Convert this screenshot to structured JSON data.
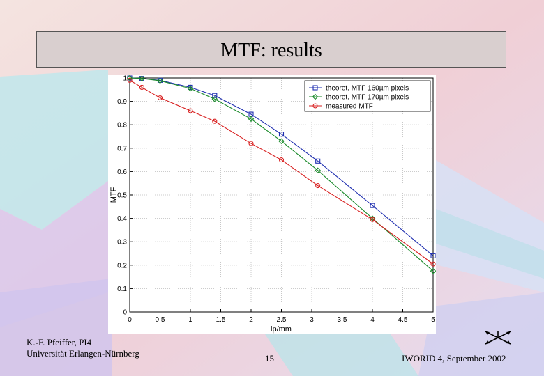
{
  "slide": {
    "title": "MTF: results",
    "author": "K.-F. Pfeiffer, PI4",
    "institution": "Universität Erlangen-Nürnberg",
    "page_number": "15",
    "conference": "IWORID 4, September 2002"
  },
  "chart_data": {
    "type": "line",
    "title": "",
    "xlabel": "lp/mm",
    "ylabel": "MTF",
    "xlim": [
      0,
      5
    ],
    "ylim": [
      0,
      1
    ],
    "xticks": [
      0,
      0.5,
      1,
      1.5,
      2,
      2.5,
      3,
      3.5,
      4,
      4.5,
      5
    ],
    "xtick_labels": [
      "0",
      "0.5",
      "1",
      "1.5",
      "2",
      "2.5",
      "3",
      "3.5",
      "4",
      "4.5",
      "5"
    ],
    "yticks": [
      0,
      0.1,
      0.2,
      0.3,
      0.4,
      0.5,
      0.6,
      0.7,
      0.8,
      0.9,
      1
    ],
    "ytick_labels": [
      "0",
      "0.1",
      "0.2",
      "0.3",
      "0.4",
      "0.5",
      "0.6",
      "0.7",
      "0.8",
      "0.9",
      "1"
    ],
    "grid": true,
    "legend_position": "top-right",
    "series": [
      {
        "name": "theoret. MTF 160µm pixels",
        "color": "#1f2fb0",
        "marker": "square",
        "x": [
          0,
          0.2,
          0.5,
          1,
          1.4,
          2,
          2.5,
          3.1,
          4,
          5
        ],
        "y": [
          1.0,
          0.998,
          0.99,
          0.96,
          0.925,
          0.845,
          0.76,
          0.645,
          0.455,
          0.24
        ]
      },
      {
        "name": "theoret. MTF 170µm pixels",
        "color": "#1a8a2a",
        "marker": "diamond",
        "x": [
          0,
          0.2,
          0.5,
          1,
          1.4,
          2,
          2.5,
          3.1,
          4,
          5
        ],
        "y": [
          1.0,
          0.998,
          0.988,
          0.955,
          0.91,
          0.825,
          0.73,
          0.605,
          0.4,
          0.175
        ]
      },
      {
        "name": "measured MTF",
        "color": "#d82020",
        "marker": "circle",
        "x": [
          0,
          0.2,
          0.5,
          1,
          1.4,
          2,
          2.5,
          3.1,
          4,
          5
        ],
        "y": [
          0.99,
          0.96,
          0.915,
          0.86,
          0.815,
          0.72,
          0.65,
          0.54,
          0.395,
          0.205
        ]
      }
    ]
  }
}
